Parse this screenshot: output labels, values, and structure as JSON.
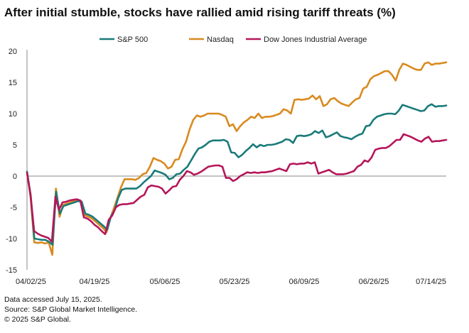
{
  "chart_data": {
    "type": "line",
    "title": "After initial stumble, stocks have rallied amid rising tariff threats (%)",
    "xlabel": "",
    "ylabel": "",
    "ylim": [
      -15,
      20
    ],
    "yticks": [
      20,
      15,
      10,
      5,
      0,
      -5,
      -10,
      -15
    ],
    "xtick_labels": [
      "04/02/25",
      "04/19/25",
      "05/06/25",
      "05/23/25",
      "06/09/25",
      "06/26/25",
      "07/14/25"
    ],
    "legend_position": "top-center",
    "grid": false,
    "series": [
      {
        "name": "S&P 500",
        "color": "#1a7a7a",
        "values": [
          0.7,
          -3.0,
          -10.0,
          -10.1,
          -10.2,
          -10.2,
          -10.5,
          -11.0,
          -2.5,
          -6.0,
          -4.8,
          -4.6,
          -4.4,
          -4.2,
          -4.0,
          -4.1,
          -6.0,
          -6.2,
          -6.5,
          -7.0,
          -7.5,
          -8.0,
          -8.6,
          -6.5,
          -5.5,
          -3.5,
          -2.2,
          -2.0,
          -2.0,
          -2.0,
          -2.0,
          -1.6,
          -1.0,
          -0.5,
          0.0,
          0.9,
          0.7,
          0.5,
          0.2,
          -0.5,
          -0.3,
          0.3,
          0.4,
          1.0,
          1.5,
          2.5,
          3.5,
          4.4,
          4.6,
          5.0,
          5.5,
          5.7,
          5.7,
          5.7,
          5.8,
          5.5,
          3.8,
          3.7,
          3.0,
          3.4,
          4.0,
          4.5,
          5.1,
          4.6,
          5.0,
          4.8,
          5.0,
          5.0,
          5.1,
          5.3,
          5.5,
          5.9,
          5.8,
          5.3,
          6.4,
          6.5,
          6.4,
          6.5,
          6.7,
          7.2,
          6.9,
          7.3,
          6.2,
          6.4,
          6.7,
          7.0,
          6.4,
          6.2,
          6.1,
          5.9,
          6.3,
          6.6,
          6.8,
          8.0,
          8.1,
          9.0,
          9.5,
          9.7,
          9.9,
          10.0,
          10.0,
          9.9,
          10.5,
          11.4,
          11.2,
          11.0,
          10.8,
          10.6,
          10.4,
          10.5,
          11.2,
          11.5,
          11.1,
          11.2,
          11.2,
          11.3
        ]
      },
      {
        "name": "Nasdaq",
        "color": "#d98a1f",
        "values": [
          0.7,
          -3.5,
          -10.6,
          -10.7,
          -10.6,
          -10.8,
          -10.6,
          -12.6,
          -2.0,
          -6.5,
          -4.6,
          -4.4,
          -4.2,
          -4.0,
          -3.8,
          -4.0,
          -6.3,
          -6.5,
          -6.8,
          -7.3,
          -7.8,
          -8.3,
          -9.0,
          -6.8,
          -5.2,
          -3.5,
          -1.8,
          -0.5,
          -0.5,
          -0.5,
          -0.6,
          -0.3,
          0.3,
          0.5,
          1.5,
          2.9,
          2.6,
          2.4,
          2.0,
          1.2,
          1.5,
          2.6,
          2.7,
          4.3,
          5.5,
          7.5,
          9.0,
          9.7,
          9.5,
          9.7,
          10.0,
          10.0,
          10.0,
          10.0,
          9.8,
          9.5,
          8.0,
          8.3,
          7.2,
          8.0,
          8.6,
          9.0,
          9.5,
          9.3,
          10.0,
          9.3,
          9.5,
          9.5,
          9.6,
          9.8,
          10.0,
          10.7,
          10.5,
          10.0,
          12.2,
          12.3,
          12.2,
          12.3,
          12.4,
          12.9,
          12.3,
          12.8,
          11.2,
          11.5,
          12.3,
          12.5,
          12.0,
          11.6,
          11.4,
          11.2,
          11.8,
          12.3,
          12.5,
          14.0,
          14.3,
          15.5,
          16.0,
          16.2,
          16.5,
          16.8,
          16.8,
          16.2,
          15.3,
          17.0,
          18.0,
          17.8,
          17.5,
          17.2,
          17.0,
          17.0,
          18.0,
          18.2,
          17.8,
          18.0,
          18.0,
          18.1,
          18.2
        ]
      },
      {
        "name": "Dow Jones Industrial Average",
        "color": "#b5165a",
        "values": [
          0.5,
          -3.0,
          -8.8,
          -9.2,
          -9.5,
          -9.7,
          -9.9,
          -10.5,
          -3.3,
          -5.4,
          -4.2,
          -4.1,
          -3.9,
          -3.8,
          -3.7,
          -3.9,
          -6.6,
          -6.8,
          -7.2,
          -7.8,
          -8.2,
          -8.8,
          -9.3,
          -7.0,
          -6.3,
          -5.0,
          -4.6,
          -4.5,
          -4.5,
          -4.4,
          -4.3,
          -3.8,
          -3.3,
          -3.0,
          -1.8,
          -1.5,
          -1.6,
          -1.7,
          -2.0,
          -2.8,
          -2.3,
          -1.7,
          -1.6,
          -0.6,
          0.0,
          0.8,
          0.6,
          0.2,
          0.4,
          0.7,
          1.1,
          1.5,
          1.6,
          1.7,
          1.7,
          1.5,
          -0.3,
          -0.3,
          -0.8,
          -0.5,
          0.0,
          0.3,
          0.6,
          0.5,
          0.6,
          0.5,
          0.6,
          0.6,
          0.7,
          0.8,
          1.0,
          1.2,
          1.0,
          0.8,
          1.9,
          2.0,
          1.9,
          2.0,
          2.0,
          2.2,
          2.0,
          2.2,
          0.4,
          0.6,
          0.8,
          1.0,
          0.6,
          0.3,
          0.3,
          0.3,
          0.4,
          0.6,
          0.8,
          1.5,
          1.8,
          2.5,
          2.3,
          3.0,
          4.2,
          4.4,
          4.5,
          4.5,
          4.8,
          5.3,
          5.8,
          5.8,
          6.7,
          6.5,
          6.3,
          6.0,
          5.7,
          5.5,
          6.0,
          6.3,
          5.5,
          5.6,
          5.6,
          5.7,
          5.8
        ]
      }
    ]
  },
  "footer": {
    "line1": "Data accessed July 15, 2025.",
    "line2": "Source: S&P Global Market Intelligence.",
    "line3": "© 2025 S&P Global."
  }
}
